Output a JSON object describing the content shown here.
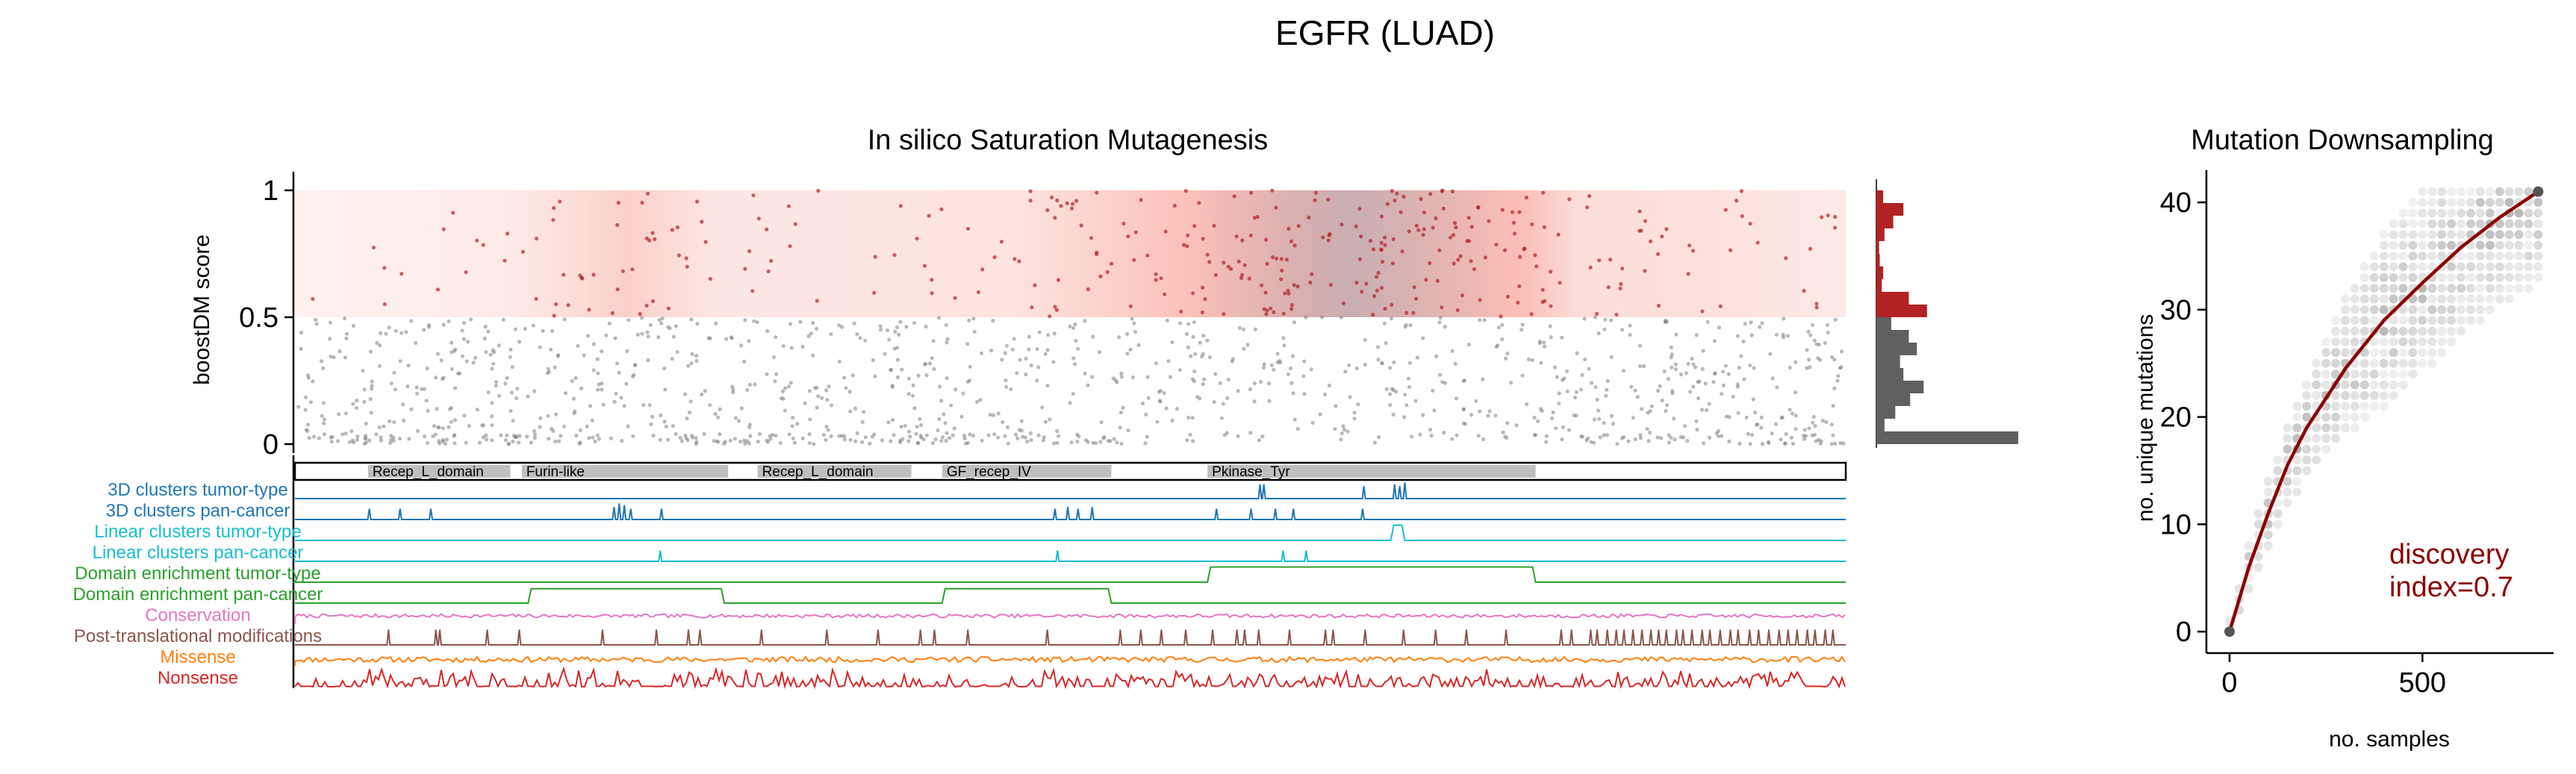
{
  "figure": {
    "title": "EGFR (LUAD)"
  },
  "chart_data": [
    {
      "type": "scatter",
      "title": "In silico Saturation Mutagenesis",
      "ylabel": "boostDM score",
      "xlabel": "",
      "ylim": [
        0,
        1
      ],
      "yticks": [
        0,
        0.5,
        1
      ],
      "ytick_labels": [
        "0",
        "0.5",
        "1"
      ],
      "protein_length": 1210,
      "driver_threshold": 0.5,
      "driver_color": "#b22222",
      "passenger_color": "#808080",
      "grid": false,
      "score_band_lows": [
        {
          "pos": 0,
          "level": 0.05
        },
        {
          "pos": 170,
          "level": 0.15
        },
        {
          "pos": 260,
          "level": 0.55
        },
        {
          "pos": 330,
          "level": 0.2
        },
        {
          "pos": 560,
          "level": 0.25
        },
        {
          "pos": 690,
          "level": 0.75
        },
        {
          "pos": 800,
          "level": 1.0
        },
        {
          "pos": 960,
          "level": 0.8
        },
        {
          "pos": 1000,
          "level": 0.35
        },
        {
          "pos": 1100,
          "level": 0.3
        },
        {
          "pos": 1210,
          "level": 0.15
        }
      ],
      "background_hotspot_color": "#a0a8b8",
      "background_hotspot_range": [
        780,
        870
      ]
    },
    {
      "type": "bar",
      "orientation": "horizontal",
      "title": "",
      "bins": [
        0.0,
        0.05,
        0.1,
        0.15,
        0.2,
        0.25,
        0.3,
        0.35,
        0.4,
        0.45,
        0.5,
        0.55,
        0.6,
        0.65,
        0.7,
        0.75,
        0.8,
        0.85,
        0.9,
        0.95
      ],
      "values": [
        210,
        12,
        28,
        50,
        70,
        40,
        35,
        60,
        48,
        22,
        75,
        48,
        8,
        10,
        5,
        4,
        12,
        25,
        40,
        10
      ],
      "driver_color": "#b22222",
      "passenger_color": "#606060"
    },
    {
      "type": "table",
      "title": "",
      "domains": [
        {
          "label": "Recep_L_domain",
          "start": 57,
          "end": 168
        },
        {
          "label": "Furin-like",
          "start": 177,
          "end": 338
        },
        {
          "label": "Recep_L_domain",
          "start": 361,
          "end": 481
        },
        {
          "label": "GF_recep_IV",
          "start": 505,
          "end": 637
        },
        {
          "label": "Pkinase_Tyr",
          "start": 712,
          "end": 968
        }
      ],
      "tracks": [
        {
          "label": "3D clusters tumor-type",
          "color": "#1f77b4",
          "kind": "spikes",
          "positions": [
            753,
            756,
            834,
            858,
            862,
            866
          ],
          "heights": [
            0.8,
            0.8,
            0.7,
            0.8,
            0.7,
            0.9
          ]
        },
        {
          "label": "3D clusters pan-cancer",
          "color": "#1f77b4",
          "kind": "spikes",
          "positions": [
            58,
            82,
            106,
            249,
            253,
            257,
            262,
            286,
            593,
            603,
            611,
            622,
            719,
            746,
            765,
            779,
            833
          ],
          "heights": [
            0.6,
            0.6,
            0.6,
            0.7,
            0.9,
            0.8,
            0.6,
            0.6,
            0.6,
            0.7,
            0.6,
            0.7,
            0.6,
            0.6,
            0.6,
            0.6,
            0.6
          ]
        },
        {
          "label": "Linear clusters tumor-type",
          "color": "#17becf",
          "kind": "step",
          "segments": [
            [
              855,
              866,
              0.85
            ]
          ]
        },
        {
          "label": "Linear clusters pan-cancer",
          "color": "#17becf",
          "kind": "spikes",
          "positions": [
            285,
            595,
            771,
            789
          ],
          "heights": [
            0.6,
            0.6,
            0.6,
            0.6
          ]
        },
        {
          "label": "Domain enrichment tumor-type",
          "color": "#2ca02c",
          "kind": "step",
          "segments": [
            [
              712,
              968,
              0.85
            ]
          ]
        },
        {
          "label": "Domain enrichment pan-cancer",
          "color": "#2ca02c",
          "kind": "step",
          "segments": [
            [
              182,
              335,
              0.8
            ],
            [
              505,
              637,
              0.8
            ]
          ]
        },
        {
          "label": "Conservation",
          "color": "#e377c2",
          "kind": "noise",
          "base": 0.45,
          "amp": 0.2,
          "seed": 7
        },
        {
          "label": "Post-translational modifications",
          "color": "#8c564b",
          "kind": "spikes",
          "positions": [
            73,
            110,
            113,
            150,
            175,
            240,
            282,
            307,
            316,
            364,
            415,
            455,
            488,
            499,
            525,
            587,
            644,
            660,
            676,
            695,
            716,
            735,
            741,
            752,
            776,
            804,
            810,
            835,
            865,
            890,
            914,
            945,
            988,
            996,
            1011,
            1016,
            1024,
            1031,
            1037,
            1044,
            1051,
            1058,
            1064,
            1070,
            1078,
            1083,
            1090,
            1098,
            1104,
            1112,
            1120,
            1126,
            1135,
            1142,
            1150,
            1158,
            1165,
            1172,
            1180,
            1186,
            1194,
            1200
          ],
          "heights": [
            0.85
          ]
        },
        {
          "label": "Missense",
          "color": "#ff7f0e",
          "kind": "noise",
          "base": 0.35,
          "amp": 0.3,
          "seed": 11
        },
        {
          "label": "Nonsense",
          "color": "#d62728",
          "kind": "noise",
          "base": 0.2,
          "amp": 0.75,
          "seed": 23
        }
      ]
    },
    {
      "type": "scatter",
      "title": "Mutation Downsampling",
      "xlabel": "no. samples",
      "ylabel": "no. unique mutations",
      "xlim": [
        -60,
        840
      ],
      "ylim": [
        -2,
        43
      ],
      "xticks": [
        0,
        500
      ],
      "xtick_labels": [
        "0",
        "500"
      ],
      "yticks": [
        0,
        10,
        20,
        30,
        40
      ],
      "ytick_labels": [
        "0",
        "10",
        "20",
        "30",
        "40"
      ],
      "fit_curve": {
        "x": [
          0,
          50,
          100,
          150,
          200,
          300,
          400,
          500,
          600,
          700,
          800
        ],
        "y": [
          0,
          6,
          11,
          15.5,
          19,
          24.5,
          29,
          32.5,
          35.8,
          38.6,
          41
        ]
      },
      "fit_color": "#8b0000",
      "point_color": "#808080",
      "max_samples": 800,
      "max_mutations": 41,
      "annotation": "discovery\nindex=0.7",
      "annotation_color": "#8b0000",
      "grid": false
    }
  ]
}
